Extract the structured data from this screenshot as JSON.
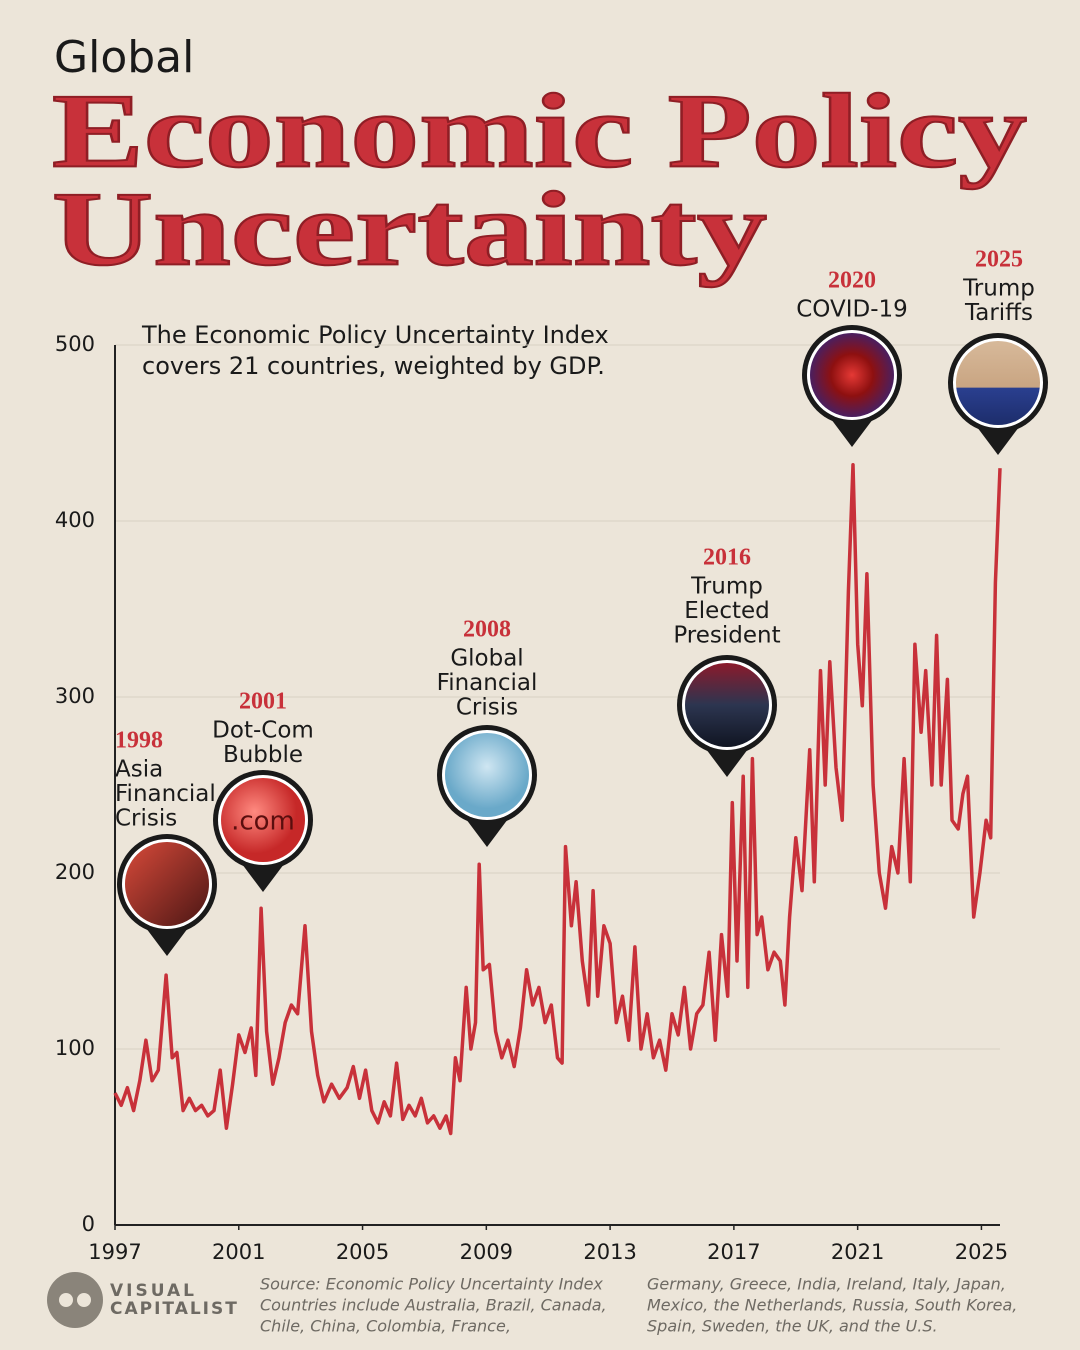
{
  "chart_data": {
    "type": "line",
    "kicker": "Global",
    "title_lines": [
      "Economic Policy",
      "Uncertainty"
    ],
    "subtitle_lines": [
      "The Economic Policy Uncertainty Index",
      "covers 21 countries, weighted by GDP."
    ],
    "color": "#c8313a",
    "grid": true,
    "xlim": [
      1997,
      2025.6
    ],
    "xticks": [
      1997,
      2001,
      2005,
      2009,
      2013,
      2017,
      2021,
      2025
    ],
    "ylim": [
      0,
      500
    ],
    "yticks": [
      0,
      100,
      200,
      300,
      400,
      500
    ],
    "x": [
      1997.0,
      1997.2,
      1997.4,
      1997.6,
      1997.8,
      1998.0,
      1998.2,
      1998.4,
      1998.65,
      1998.85,
      1999.0,
      1999.2,
      1999.4,
      1999.6,
      1999.8,
      2000.0,
      2000.2,
      2000.4,
      2000.6,
      2000.8,
      2001.0,
      2001.2,
      2001.4,
      2001.55,
      2001.72,
      2001.9,
      2002.1,
      2002.3,
      2002.5,
      2002.7,
      2002.9,
      2003.14,
      2003.35,
      2003.55,
      2003.75,
      2004.0,
      2004.25,
      2004.5,
      2004.7,
      2004.9,
      2005.1,
      2005.3,
      2005.5,
      2005.7,
      2005.9,
      2006.1,
      2006.3,
      2006.5,
      2006.7,
      2006.9,
      2007.1,
      2007.3,
      2007.5,
      2007.7,
      2007.85,
      2008.0,
      2008.15,
      2008.35,
      2008.5,
      2008.65,
      2008.77,
      2008.9,
      2009.1,
      2009.3,
      2009.5,
      2009.7,
      2009.9,
      2010.1,
      2010.3,
      2010.5,
      2010.7,
      2010.9,
      2011.1,
      2011.3,
      2011.45,
      2011.56,
      2011.75,
      2011.9,
      2012.1,
      2012.3,
      2012.45,
      2012.6,
      2012.8,
      2013.0,
      2013.2,
      2013.4,
      2013.6,
      2013.8,
      2014.0,
      2014.2,
      2014.4,
      2014.6,
      2014.8,
      2015.0,
      2015.2,
      2015.4,
      2015.6,
      2015.8,
      2016.0,
      2016.2,
      2016.4,
      2016.6,
      2016.8,
      2016.95,
      2017.1,
      2017.3,
      2017.45,
      2017.6,
      2017.75,
      2017.9,
      2018.1,
      2018.3,
      2018.5,
      2018.65,
      2018.8,
      2019.0,
      2019.2,
      2019.45,
      2019.6,
      2019.8,
      2019.95,
      2020.1,
      2020.3,
      2020.5,
      2020.7,
      2020.85,
      2021.0,
      2021.15,
      2021.3,
      2021.5,
      2021.7,
      2021.9,
      2022.1,
      2022.3,
      2022.5,
      2022.7,
      2022.85,
      2023.05,
      2023.2,
      2023.4,
      2023.55,
      2023.7,
      2023.9,
      2024.05,
      2024.25,
      2024.4,
      2024.55,
      2024.75,
      2024.95,
      2025.15,
      2025.3,
      2025.45,
      2025.6
    ],
    "values": [
      75,
      68,
      78,
      65,
      82,
      105,
      82,
      88,
      142,
      95,
      98,
      65,
      72,
      65,
      68,
      62,
      65,
      88,
      55,
      80,
      108,
      98,
      112,
      85,
      180,
      110,
      80,
      95,
      115,
      125,
      120,
      170,
      110,
      85,
      70,
      80,
      72,
      78,
      90,
      72,
      88,
      65,
      58,
      70,
      62,
      92,
      60,
      68,
      62,
      72,
      58,
      62,
      55,
      62,
      52,
      95,
      82,
      135,
      100,
      115,
      205,
      145,
      148,
      110,
      95,
      105,
      90,
      112,
      145,
      125,
      135,
      115,
      125,
      95,
      92,
      215,
      170,
      195,
      150,
      125,
      190,
      130,
      170,
      160,
      115,
      130,
      105,
      158,
      100,
      120,
      95,
      105,
      88,
      120,
      108,
      135,
      100,
      120,
      125,
      155,
      105,
      165,
      130,
      240,
      150,
      255,
      135,
      265,
      165,
      175,
      145,
      155,
      150,
      125,
      175,
      220,
      190,
      270,
      195,
      315,
      250,
      320,
      260,
      230,
      360,
      432,
      330,
      295,
      370,
      250,
      200,
      180,
      215,
      200,
      265,
      195,
      330,
      280,
      315,
      250,
      335,
      250,
      310,
      230,
      225,
      245,
      255,
      175,
      200,
      230,
      220,
      365,
      430
    ],
    "annotations": [
      {
        "year": "1998",
        "lines": [
          "Asia",
          "Financial",
          "Crisis"
        ]
      },
      {
        "year": "2001",
        "lines": [
          "Dot-Com",
          "Bubble"
        ]
      },
      {
        "year": "2008",
        "lines": [
          "Global",
          "Financial",
          "Crisis"
        ]
      },
      {
        "year": "2016",
        "lines": [
          "Trump",
          "Elected",
          "President"
        ]
      },
      {
        "year": "2020",
        "lines": [
          "COVID-19"
        ]
      },
      {
        "year": "2025",
        "lines": [
          "Trump",
          "Tariffs"
        ]
      }
    ],
    "icon_text": ".com",
    "logo": [
      "VISUAL",
      "CAPITALIST"
    ],
    "source_columns": [
      [
        "Source: Economic Policy Uncertainty Index",
        "Countries include Australia, Brazil, Canada,",
        "Chile, China, Colombia, France,"
      ],
      [
        "Germany, Greece, India, Ireland, Italy, Japan,",
        "Mexico, the Netherlands, Russia, South Korea,",
        "Spain, Sweden, the UK, and the U.S."
      ]
    ]
  }
}
